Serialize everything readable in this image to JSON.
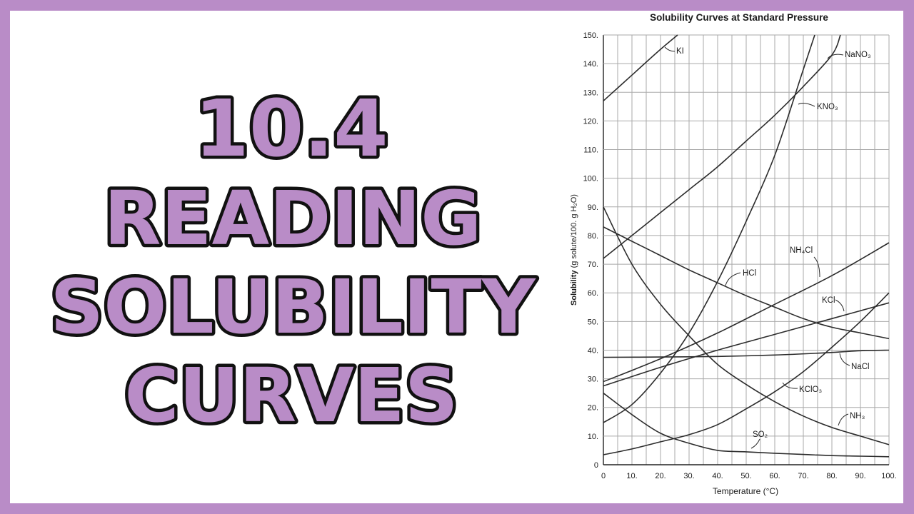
{
  "title": {
    "line1": "10.4",
    "line2": "READING",
    "line3": "SOLUBILITY",
    "line4": "CURVES"
  },
  "colors": {
    "frame": "#b98cc7",
    "title_fill": "#b98cc7",
    "title_outline": "#111111",
    "grid": "#a9a9a9",
    "curve": "#2b2b2b"
  },
  "chart_data": {
    "type": "line",
    "title": "Solubility Curves at Standard Pressure",
    "xlabel": "Temperature (°C)",
    "ylabel_main": "Solubility",
    "ylabel_unit": "(g solute/100. g H₂O)",
    "xlim": [
      0,
      100
    ],
    "ylim": [
      0,
      150
    ],
    "grid": true,
    "x_ticks": [
      "0",
      "10.",
      "20.",
      "30.",
      "40.",
      "50.",
      "60.",
      "70.",
      "80.",
      "90.",
      "100."
    ],
    "y_ticks": [
      "0",
      "10.",
      "20.",
      "30.",
      "40.",
      "50.",
      "60.",
      "70.",
      "80.",
      "90.",
      "100.",
      "110.",
      "120.",
      "130.",
      "140.",
      "150."
    ],
    "series": [
      {
        "name": "KI",
        "label": "KI",
        "x": [
          0,
          10,
          20,
          26
        ],
        "y": [
          127,
          136,
          145,
          150
        ]
      },
      {
        "name": "NaNO3",
        "label": "NaNO₃",
        "x": [
          0,
          10,
          20,
          30,
          40,
          50,
          60,
          70,
          80,
          83
        ],
        "y": [
          72,
          80,
          88,
          96,
          104,
          113,
          122,
          132,
          143,
          150
        ]
      },
      {
        "name": "KNO3",
        "label": "KNO₃",
        "x": [
          0,
          10,
          20,
          30,
          40,
          50,
          60,
          70,
          74
        ],
        "y": [
          14.7,
          21,
          32,
          46,
          64,
          85,
          108,
          138,
          150
        ]
      },
      {
        "name": "NH4Cl",
        "label": "NH₄Cl",
        "x": [
          0,
          20,
          40,
          60,
          80,
          100
        ],
        "y": [
          29,
          37,
          46,
          56,
          66,
          77.5
        ]
      },
      {
        "name": "HCl",
        "label": "HCl",
        "x": [
          0,
          10,
          20,
          30,
          40,
          50,
          60,
          70,
          80,
          90,
          100
        ],
        "y": [
          83,
          78,
          73,
          68,
          63.5,
          59,
          55,
          51,
          48,
          46,
          44
        ]
      },
      {
        "name": "KCl",
        "label": "KCl",
        "x": [
          0,
          20,
          40,
          60,
          80,
          100
        ],
        "y": [
          27.5,
          34,
          40,
          45.5,
          51,
          56.5
        ]
      },
      {
        "name": "NaCl",
        "label": "NaCl",
        "x": [
          0,
          20,
          40,
          60,
          80,
          90,
          100
        ],
        "y": [
          37.5,
          37.6,
          37.8,
          38.3,
          39.2,
          39.8,
          40
        ]
      },
      {
        "name": "KClO3",
        "label": "KClO₃",
        "x": [
          0,
          10,
          20,
          30,
          40,
          50,
          60,
          70,
          80,
          90,
          100
        ],
        "y": [
          3.5,
          5.5,
          8,
          10.5,
          14,
          19.5,
          25.5,
          32.5,
          41,
          50,
          60
        ]
      },
      {
        "name": "NH3",
        "label": "NH₃",
        "x": [
          0,
          10,
          20,
          30,
          40,
          50,
          60,
          70,
          80,
          90,
          100
        ],
        "y": [
          90,
          70,
          56,
          45,
          35,
          28,
          22,
          17,
          13,
          10,
          7
        ]
      },
      {
        "name": "SO2",
        "label": "SO₂",
        "x": [
          0,
          10,
          20,
          30,
          40,
          50,
          60,
          70,
          80,
          90,
          100
        ],
        "y": [
          25,
          17.5,
          11,
          7.5,
          5,
          4.5,
          4,
          3.6,
          3.2,
          3,
          2.8
        ]
      }
    ]
  }
}
